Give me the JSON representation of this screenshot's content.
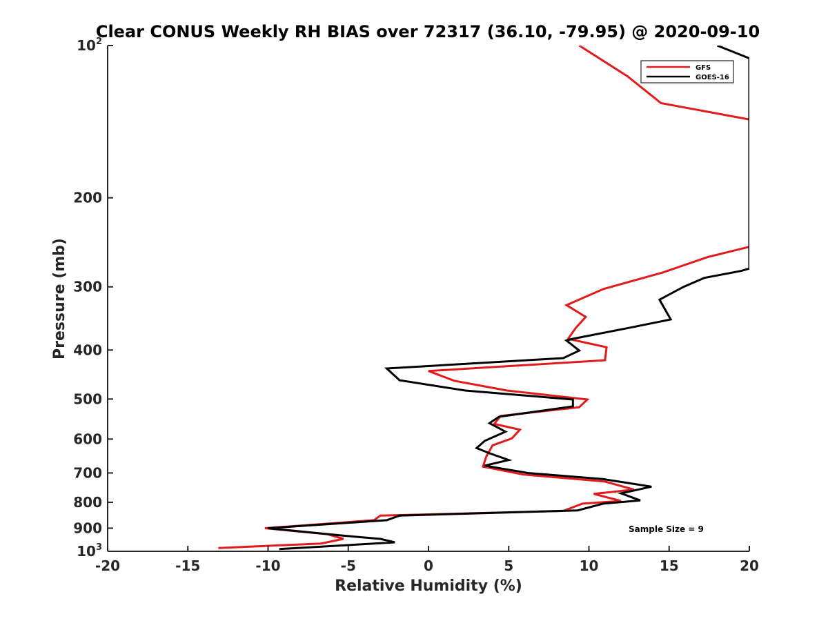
{
  "chart_data": {
    "type": "line",
    "title": "Clear CONUS Weekly RH BIAS over 72317 (36.10, -79.95) @ 2020-09-10",
    "xlabel": "Relative Humidity (%)",
    "ylabel": "Pressure (mb)",
    "xlim": [
      -20,
      20
    ],
    "ylim": [
      100,
      1000
    ],
    "y_scale": "log",
    "y_reversed": true,
    "grid": false,
    "legend_position": "top-right",
    "annotation": "Sample Size = 9",
    "x_ticks": [
      {
        "value": -20,
        "label": "-20"
      },
      {
        "value": -15,
        "label": "-15"
      },
      {
        "value": -10,
        "label": "-10"
      },
      {
        "value": -5,
        "label": "-5"
      },
      {
        "value": 0,
        "label": "0"
      },
      {
        "value": 5,
        "label": "5"
      },
      {
        "value": 10,
        "label": "10"
      },
      {
        "value": 15,
        "label": "15"
      },
      {
        "value": 20,
        "label": "20"
      }
    ],
    "y_ticks": [
      {
        "value": 100,
        "label": "10",
        "sup": "2"
      },
      {
        "value": 200,
        "label": "200"
      },
      {
        "value": 300,
        "label": "300"
      },
      {
        "value": 400,
        "label": "400"
      },
      {
        "value": 500,
        "label": "500"
      },
      {
        "value": 600,
        "label": "600"
      },
      {
        "value": 700,
        "label": "700"
      },
      {
        "value": 800,
        "label": "800"
      },
      {
        "value": 900,
        "label": "900"
      },
      {
        "value": 1000,
        "label": "10",
        "sup": "3"
      }
    ],
    "series": [
      {
        "name": "GFS",
        "color": "#e31a1c",
        "points": [
          [
            9.4,
            100
          ],
          [
            12.4,
            115
          ],
          [
            14.5,
            130
          ],
          [
            20.0,
            140
          ],
          [
            20.0,
            250
          ],
          [
            17.4,
            262
          ],
          [
            14.6,
            281
          ],
          [
            10.9,
            303
          ],
          [
            8.6,
            326
          ],
          [
            9.8,
            344
          ],
          [
            9.2,
            361
          ],
          [
            8.7,
            380
          ],
          [
            11.1,
            395
          ],
          [
            11.0,
            419
          ],
          [
            0.0,
            440
          ],
          [
            1.6,
            460
          ],
          [
            4.9,
            481
          ],
          [
            9.9,
            501
          ],
          [
            9.4,
            519
          ],
          [
            4.5,
            540
          ],
          [
            4.1,
            560
          ],
          [
            5.7,
            575
          ],
          [
            5.2,
            598
          ],
          [
            4.0,
            617
          ],
          [
            3.6,
            650
          ],
          [
            3.4,
            680
          ],
          [
            5.9,
            705
          ],
          [
            11.0,
            728
          ],
          [
            12.8,
            755
          ],
          [
            10.3,
            770
          ],
          [
            12.0,
            795
          ],
          [
            9.6,
            805
          ],
          [
            8.4,
            832
          ],
          [
            -3.0,
            850
          ],
          [
            -3.4,
            868
          ],
          [
            -10.2,
            900
          ],
          [
            -6.3,
            925
          ],
          [
            -5.3,
            945
          ],
          [
            -6.7,
            965
          ],
          [
            -13.1,
            985
          ]
        ]
      },
      {
        "name": "GOES-16",
        "color": "#000000",
        "points": [
          [
            18.0,
            100
          ],
          [
            20.0,
            106
          ],
          [
            20.0,
            276
          ],
          [
            19.5,
            279
          ],
          [
            17.2,
            288
          ],
          [
            15.9,
            300
          ],
          [
            14.4,
            318
          ],
          [
            15.1,
            348
          ],
          [
            12.6,
            361
          ],
          [
            9.0,
            380
          ],
          [
            8.6,
            383
          ],
          [
            9.4,
            401
          ],
          [
            8.4,
            415
          ],
          [
            -2.6,
            435
          ],
          [
            -1.8,
            459
          ],
          [
            2.3,
            481
          ],
          [
            9.0,
            501
          ],
          [
            9.0,
            517
          ],
          [
            4.4,
            542
          ],
          [
            3.8,
            558
          ],
          [
            4.8,
            580
          ],
          [
            3.5,
            605
          ],
          [
            3.0,
            625
          ],
          [
            3.8,
            640
          ],
          [
            5.0,
            660
          ],
          [
            3.5,
            677
          ],
          [
            6.2,
            700
          ],
          [
            10.9,
            720
          ],
          [
            13.9,
            745
          ],
          [
            12.0,
            768
          ],
          [
            13.2,
            793
          ],
          [
            10.9,
            805
          ],
          [
            9.3,
            830
          ],
          [
            -1.8,
            850
          ],
          [
            -2.6,
            868
          ],
          [
            -10.0,
            900
          ],
          [
            -5.5,
            930
          ],
          [
            -3.0,
            945
          ],
          [
            -2.1,
            960
          ],
          [
            -9.3,
            990
          ]
        ]
      }
    ]
  }
}
